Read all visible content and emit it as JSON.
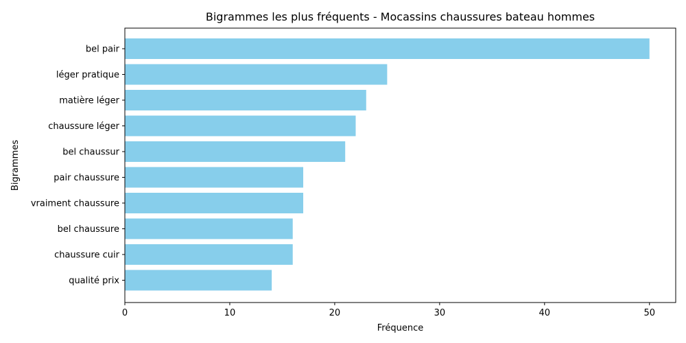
{
  "chart_data": {
    "type": "bar",
    "orientation": "horizontal",
    "title": "Bigrammes les plus fréquents - Mocassins chaussures bateau hommes",
    "xlabel": "Fréquence",
    "ylabel": "Bigrammes",
    "categories": [
      "bel pair",
      "léger pratique",
      "matière léger",
      "chaussure léger",
      "bel chaussur",
      "pair chaussure",
      "vraiment chaussure",
      "bel chaussure",
      "chaussure cuir",
      "qualité prix"
    ],
    "values": [
      50,
      25,
      23,
      22,
      21,
      17,
      17,
      16,
      16,
      14
    ],
    "xlim": [
      0,
      52.5
    ],
    "xticks": [
      0,
      10,
      20,
      30,
      40,
      50
    ],
    "grid": false,
    "bar_color": "#87ceeb"
  }
}
